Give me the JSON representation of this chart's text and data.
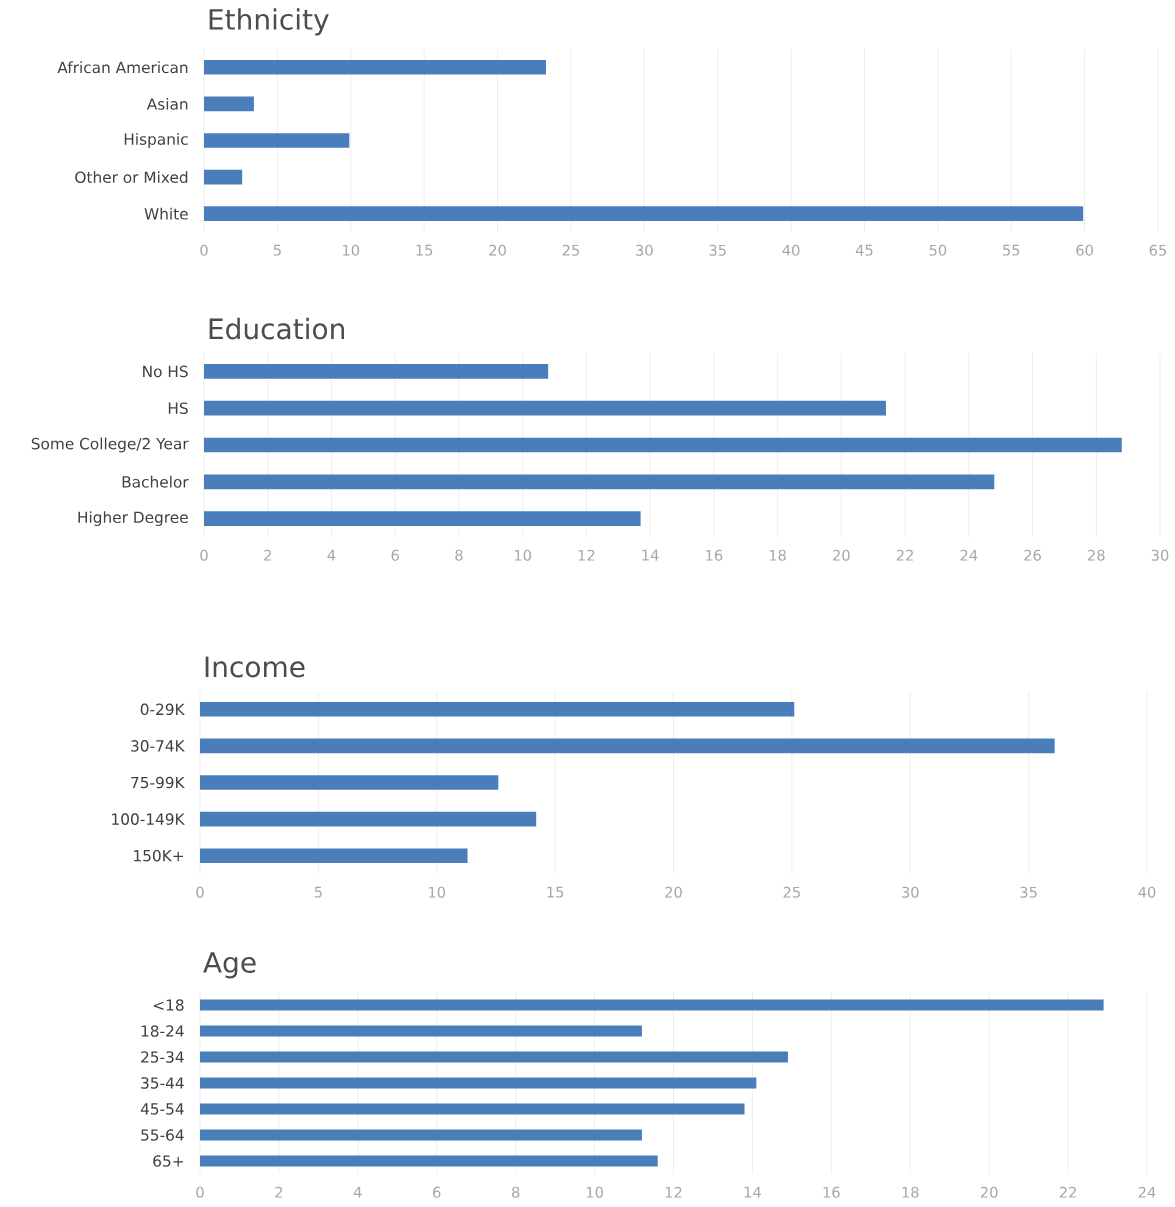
{
  "chart_data": [
    {
      "type": "bar",
      "orientation": "horizontal",
      "title": "Ethnicity",
      "categories": [
        "African American",
        "Asian",
        "Hispanic",
        "Other or Mixed",
        "White"
      ],
      "values": [
        23.3,
        3.4,
        9.9,
        2.6,
        59.9
      ],
      "color": "#4a7ebb",
      "xlim": [
        0,
        65
      ],
      "xticks": [
        0,
        5,
        10,
        15,
        20,
        25,
        30,
        35,
        40,
        45,
        50,
        55,
        60,
        65
      ],
      "grid": "x"
    },
    {
      "type": "bar",
      "orientation": "horizontal",
      "title": "Education",
      "categories": [
        "No HS",
        "HS",
        "Some College/2 Year",
        "Bachelor",
        "Higher Degree"
      ],
      "values": [
        10.8,
        21.4,
        28.8,
        24.8,
        13.7
      ],
      "color": "#4a7ebb",
      "xlim": [
        0,
        30
      ],
      "xticks": [
        0,
        2,
        4,
        6,
        8,
        10,
        12,
        14,
        16,
        18,
        20,
        22,
        24,
        26,
        28,
        30
      ],
      "grid": "x"
    },
    {
      "type": "bar",
      "orientation": "horizontal",
      "title": "Income",
      "categories": [
        "0-29K",
        "30-74K",
        "75-99K",
        "100-149K",
        "150K+"
      ],
      "values": [
        25.1,
        36.1,
        12.6,
        14.2,
        11.3
      ],
      "color": "#4a7ebb",
      "xlim": [
        0,
        40
      ],
      "xticks": [
        0,
        5,
        10,
        15,
        20,
        25,
        30,
        35,
        40
      ],
      "grid": "x"
    },
    {
      "type": "bar",
      "orientation": "horizontal",
      "title": "Age",
      "categories": [
        "<18",
        "18-24",
        "25-34",
        "35-44",
        "45-54",
        "55-64",
        "65+"
      ],
      "values": [
        22.9,
        11.2,
        14.9,
        14.1,
        13.8,
        11.2,
        11.6
      ],
      "color": "#4a7ebb",
      "xlim": [
        0,
        24
      ],
      "xticks": [
        0,
        2,
        4,
        6,
        8,
        10,
        12,
        14,
        16,
        18,
        20,
        22,
        24
      ],
      "grid": "x"
    }
  ]
}
